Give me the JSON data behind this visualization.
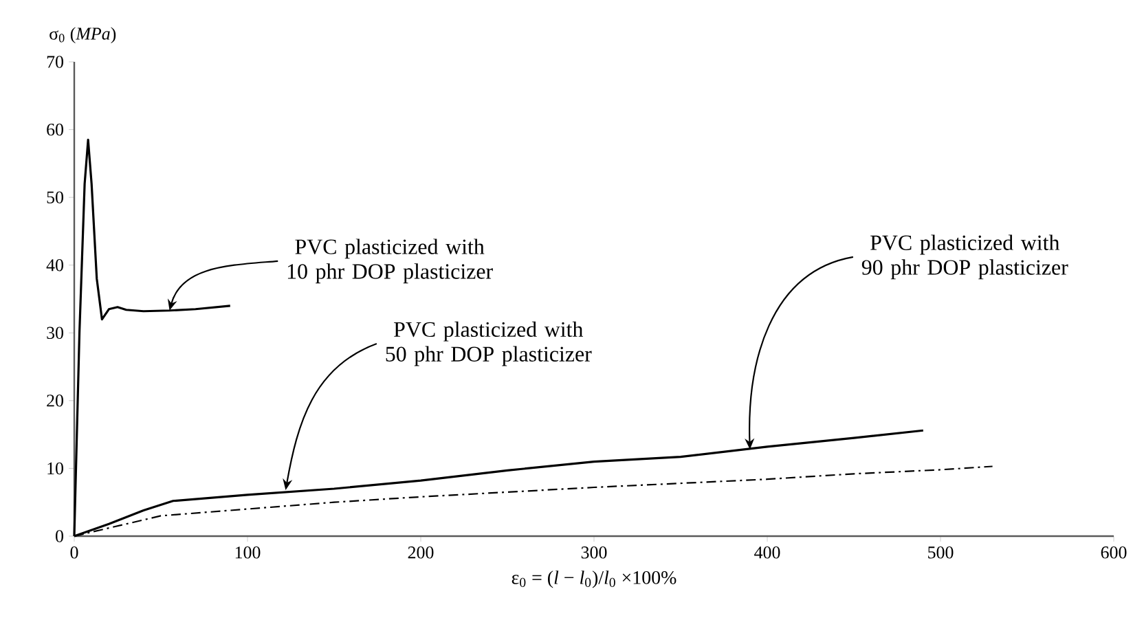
{
  "chart_data": {
    "type": "line",
    "xlabel": "ε$_{0}$ = (*l* − *l*$_{0}$)/*l*$_{0}$ ×100%",
    "ylabel": "σ$_{0}$ (*MPa*)",
    "xlim": [
      0,
      600
    ],
    "ylim": [
      0,
      70
    ],
    "xticks": [
      0,
      100,
      200,
      300,
      400,
      500,
      600
    ],
    "yticks": [
      0,
      10,
      20,
      30,
      40,
      50,
      60,
      70
    ],
    "marker": "none",
    "series": [
      {
        "color": "#000000",
        "line_style": "solid",
        "x": [
          0,
          3,
          6,
          8,
          10,
          13,
          16,
          20,
          25,
          30,
          40,
          55,
          70,
          90
        ],
        "values": [
          0,
          30,
          52,
          58.5,
          52,
          38,
          32,
          33.5,
          33.8,
          33.4,
          33.2,
          33.3,
          33.5,
          34
        ]
      },
      {
        "color": "#000000",
        "line_style": "solid",
        "x": [
          0,
          20,
          40,
          57,
          100,
          150,
          200,
          250,
          300,
          350,
          400,
          450,
          490
        ],
        "values": [
          0,
          1.8,
          3.8,
          5.2,
          6.1,
          7,
          8.2,
          9.7,
          11,
          11.7,
          13.2,
          14.5,
          15.6
        ]
      },
      {
        "color": "#000000",
        "line_style": "dashdotted",
        "x": [
          0,
          20,
          50,
          100,
          150,
          200,
          250,
          300,
          350,
          400,
          450,
          500,
          530
        ],
        "values": [
          0,
          1.2,
          3,
          4,
          5,
          5.8,
          6.5,
          7.2,
          7.8,
          8.4,
          9.2,
          9.8,
          10.3
        ]
      }
    ],
    "annotations": [
      {
        "text": "PVC plasticized with 10 phr DOP plasticizer",
        "x": 55,
        "y": 33.3
      },
      {
        "text": "PVC plasticized with 50 phr DOP plasticizer",
        "x": 122,
        "y": 6.8
      },
      {
        "text": "PVC plasticized with 90 phr DOP plasticizer",
        "x": 390,
        "y": 12.8
      }
    ]
  }
}
